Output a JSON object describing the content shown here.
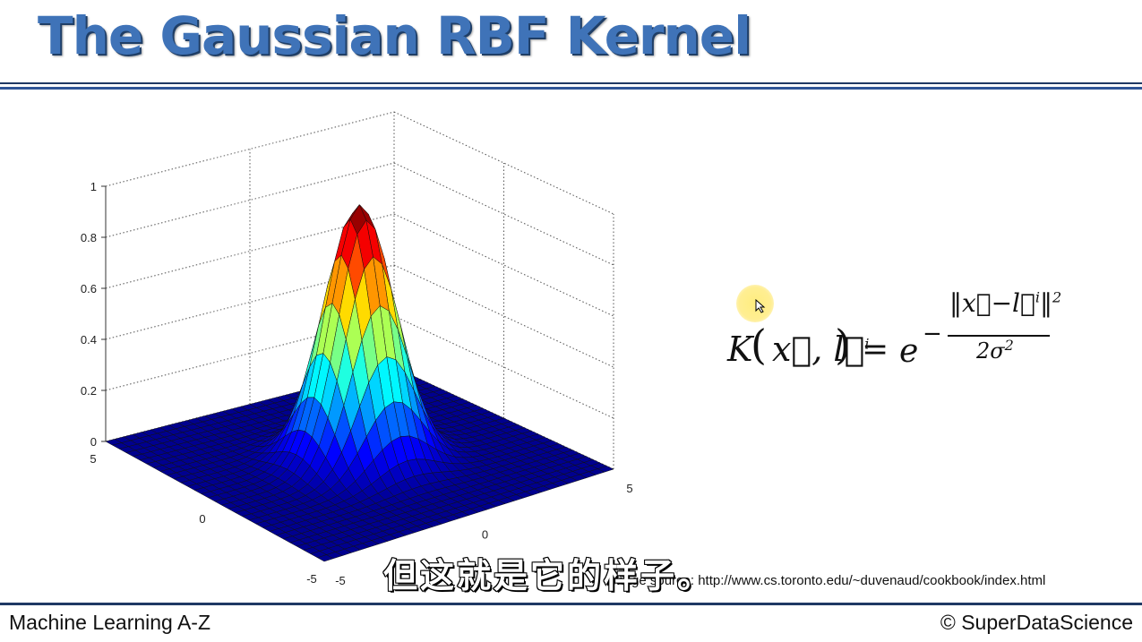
{
  "slide": {
    "title": "The Gaussian RBF Kernel",
    "formula": {
      "lhs": "K",
      "args": "x⃗, l⃗",
      "arg_sup": "i",
      "equals": "=",
      "base": "e",
      "minus": "−",
      "numerator": "‖x⃗−l⃗",
      "numerator_sup_i": "i",
      "numerator_close": "‖",
      "numerator_sup": "2",
      "denominator": "2σ",
      "denominator_sup": "2"
    },
    "image_source": "Image source: http://www.cs.toronto.edu/~duvenaud/cookbook/index.html",
    "subtitle": "但这就是它的样子。",
    "footer_left": "Machine Learning A-Z",
    "footer_right": "© SuperDataScience"
  },
  "chart_data": {
    "type": "surface",
    "function": "z = exp(-(x^2 + y^2) / (2 * sigma^2))",
    "sigma": 1,
    "x_range": [
      -5,
      5
    ],
    "y_range": [
      -5,
      5
    ],
    "z_range": [
      0,
      1
    ],
    "grid_steps": 33,
    "colormap": "jet",
    "grid": true,
    "z_ticks": [
      "0",
      "0.2",
      "0.4",
      "0.6",
      "0.8",
      "1"
    ],
    "x_ticks": [
      "-5",
      "0",
      "5"
    ],
    "y_ticks": [
      "5",
      "0",
      "-5"
    ],
    "colors": [
      "#00008f",
      "#0000ff",
      "#0080ff",
      "#00ffff",
      "#80ff80",
      "#ffff00",
      "#ff8000",
      "#ff0000",
      "#800000"
    ]
  }
}
